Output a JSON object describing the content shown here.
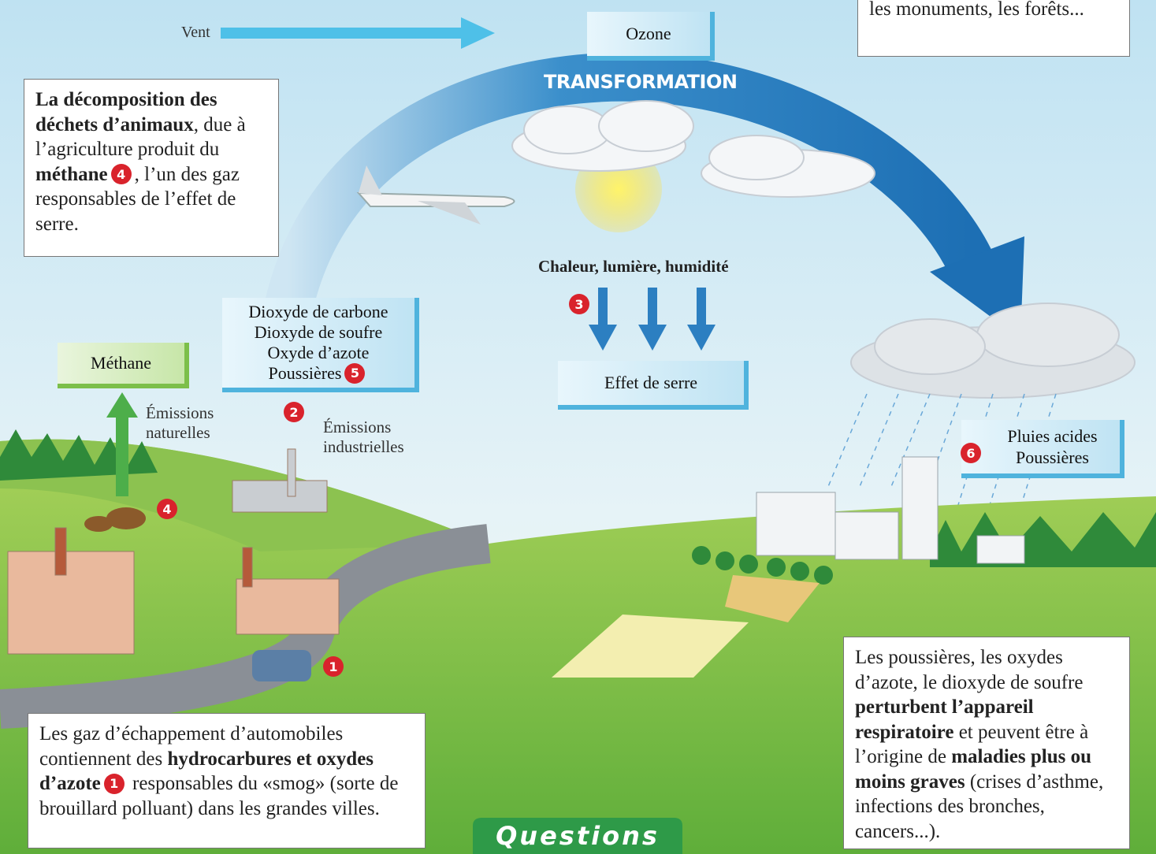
{
  "top_box": [
    {
      "text": "les monuments, les forêts...",
      "style": "normal"
    }
  ],
  "wind": "Vent",
  "ozone": "Ozone",
  "transformation": "TRANSFORMATION",
  "methane_box": [
    {
      "text": "La décomposition des déchets d’animaux",
      "style": "bold"
    },
    {
      "text": ", due à l’agriculture produit du ",
      "style": "normal"
    },
    {
      "text": "méthane",
      "style": "bold"
    },
    {
      "text": "4",
      "style": "badge"
    },
    {
      "text": ", l’un des gaz responsables de l’effet de serre.",
      "style": "normal"
    }
  ],
  "gases": [
    "Dioxyde de carbone",
    "Dioxyde de soufre",
    "Oxyde d’azote",
    "Poussières"
  ],
  "gases_badge": "5",
  "methane": "Méthane",
  "natural_emissions": "Émissions naturelles",
  "industrial_emissions": "Émissions industrielles",
  "heat": "Chaleur, lumière, humidité",
  "greenhouse": "Effet de serre",
  "acid_rain": [
    "Pluies acides",
    "Poussières"
  ],
  "badges": {
    "car": "1",
    "factory": "2",
    "heat": "3",
    "cows": "4",
    "rain": "6"
  },
  "exhaust_box": [
    {
      "text": "Les gaz d’échappement d’automobiles contiennent des ",
      "style": "normal"
    },
    {
      "text": "hydrocarbures et oxydes d’azote",
      "style": "bold"
    },
    {
      "text": "1",
      "style": "badge"
    },
    {
      "text": " responsables du «smog» (sorte de brouillard polluant) dans les grandes villes.",
      "style": "normal"
    }
  ],
  "health_box": [
    {
      "text": "Les poussières, les oxydes d’azote, le dioxyde de soufre ",
      "style": "normal"
    },
    {
      "text": "perturbent l’appareil respiratoire",
      "style": "bold"
    },
    {
      "text": " et peuvent être à l’origine de ",
      "style": "normal"
    },
    {
      "text": "maladies plus ou moins graves",
      "style": "bold"
    },
    {
      "text": " (crises d’asthme, infections des bronches, cancers...).",
      "style": "normal"
    }
  ],
  "questions": "Questions"
}
